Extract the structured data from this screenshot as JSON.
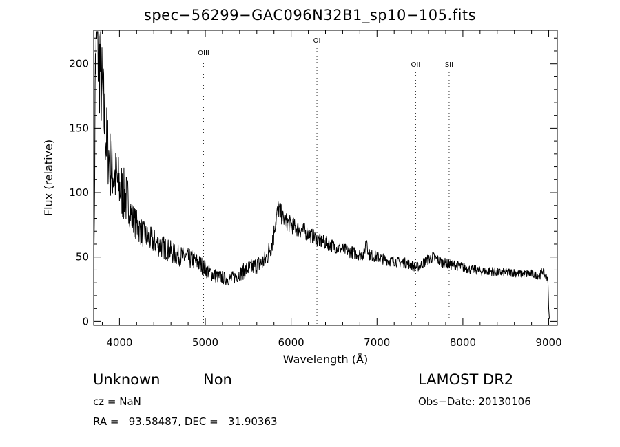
{
  "chart_data": {
    "type": "line",
    "title": "spec−56299−GAC096N32B1_sp10−105.fits",
    "xlabel": "Wavelength (Å)",
    "ylabel": "Flux (relative)",
    "xlim": [
      3700,
      9100
    ],
    "ylim": [
      -3,
      226
    ],
    "x_ticks": [
      4000,
      5000,
      6000,
      7000,
      8000,
      9000
    ],
    "y_ticks": [
      0,
      50,
      100,
      150,
      200
    ],
    "grid": false,
    "legend": "none",
    "line_color": "#000000",
    "lines": [
      {
        "label": "OIII",
        "x": 4980
      },
      {
        "label": "OI",
        "x": 6300
      },
      {
        "label": "OII",
        "x": 7450
      },
      {
        "label": "SII",
        "x": 7840
      }
    ],
    "series": [
      {
        "x": [
          3700,
          3720,
          3740,
          3760,
          3780,
          3800,
          3820,
          3840,
          3860,
          3880,
          3900,
          3930,
          3960,
          4000,
          4050,
          4100,
          4150,
          4200,
          4250,
          4300,
          4350,
          4400,
          4450,
          4500,
          4550,
          4600,
          4650,
          4700,
          4750,
          4800,
          4850,
          4900,
          4950,
          5000,
          5050,
          5100,
          5150,
          5200,
          5250,
          5300,
          5350,
          5400,
          5450,
          5500,
          5550,
          5600,
          5650,
          5700,
          5730,
          5760,
          5790,
          5820,
          5850,
          5880,
          5900,
          5950,
          6000,
          6050,
          6100,
          6150,
          6200,
          6250,
          6300,
          6350,
          6400,
          6450,
          6500,
          6550,
          6600,
          6650,
          6700,
          6750,
          6800,
          6850,
          6880,
          6900,
          6950,
          7000,
          7050,
          7100,
          7150,
          7200,
          7250,
          7300,
          7350,
          7400,
          7450,
          7500,
          7550,
          7600,
          7650,
          7700,
          7750,
          7800,
          7850,
          7900,
          7950,
          8000,
          8050,
          8100,
          8150,
          8200,
          8250,
          8300,
          8350,
          8400,
          8450,
          8500,
          8550,
          8600,
          8650,
          8700,
          8750,
          8800,
          8850,
          8900,
          8930,
          8950,
          8970,
          8990,
          9000,
          9010
        ],
        "y": [
          10,
          205,
          218,
          205,
          195,
          175,
          160,
          145,
          135,
          128,
          120,
          115,
          110,
          105,
          98,
          92,
          80,
          75,
          70,
          66,
          64,
          62,
          60,
          58,
          56,
          54,
          52,
          51,
          50,
          49,
          48,
          46,
          44,
          41,
          38,
          36,
          35,
          34,
          33,
          33,
          35,
          37,
          39,
          41,
          42,
          44,
          45,
          48,
          52,
          58,
          66,
          78,
          88,
          84,
          80,
          77,
          75,
          73,
          71,
          70,
          68,
          66,
          64,
          62,
          61,
          60,
          58,
          57,
          56,
          55,
          54,
          53,
          52,
          52,
          65,
          52,
          51,
          50,
          49,
          48,
          47,
          47,
          46,
          46,
          45,
          44,
          42,
          43,
          46,
          48,
          50,
          48,
          46,
          45,
          44,
          44,
          43,
          42,
          41,
          40,
          40,
          39,
          39,
          39,
          39,
          38,
          38,
          38,
          38,
          38,
          37,
          37,
          37,
          37,
          36,
          36,
          40,
          36,
          35,
          34,
          10,
          0
        ]
      }
    ]
  },
  "info": {
    "class": "Unknown",
    "subclass": "Non",
    "survey": "LAMOST DR2",
    "cz": "cz = NaN",
    "obs_date": "Obs−Date: 20130106",
    "radec": "RA =   93.58487, DEC =   31.90363"
  }
}
